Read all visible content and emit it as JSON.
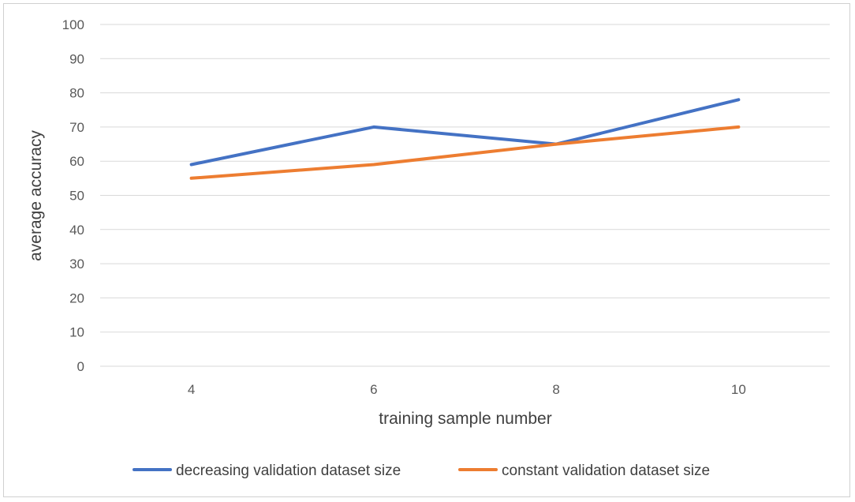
{
  "chart_data": {
    "type": "line",
    "title": "",
    "xlabel": "training sample number",
    "ylabel": "average accuracy",
    "categories": [
      "4",
      "6",
      "8",
      "10"
    ],
    "ylim": [
      0,
      100
    ],
    "yticks": [
      0,
      10,
      20,
      30,
      40,
      50,
      60,
      70,
      80,
      90,
      100
    ],
    "grid": true,
    "legend_position": "bottom",
    "series": [
      {
        "name": "decreasing validation dataset size",
        "color": "#4472C4",
        "values": [
          59,
          70,
          65,
          78
        ]
      },
      {
        "name": "constant validation dataset size",
        "color": "#ED7D31",
        "values": [
          55,
          59,
          65,
          70
        ]
      }
    ]
  }
}
